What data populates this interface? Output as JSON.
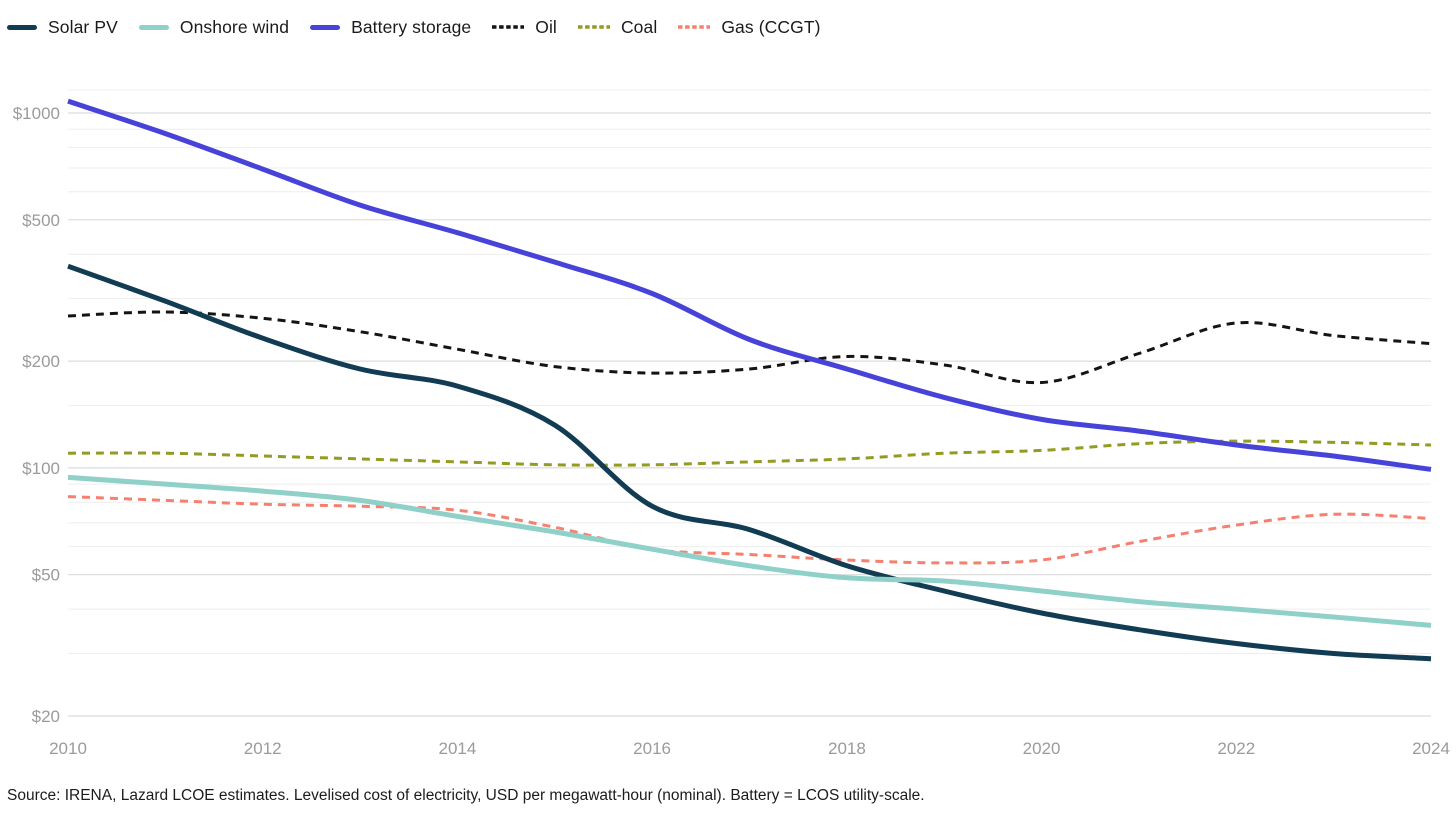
{
  "source_note": "Source: IRENA, Lazard LCOE estimates. Levelised cost of electricity, USD per megawatt-hour (nominal). Battery = LCOS utility-scale.",
  "chart_data": {
    "type": "line",
    "title": "",
    "xlabel": "",
    "ylabel": "USD per megawatt-hour (nominal)",
    "y_scale": "log",
    "ylim": [
      20,
      1100
    ],
    "grid": true,
    "legend_position": "top-left",
    "x": [
      2010,
      2011,
      2012,
      2013,
      2014,
      2015,
      2016,
      2017,
      2018,
      2019,
      2020,
      2021,
      2022,
      2023,
      2024
    ],
    "x_tick_labels": [
      "2010",
      "2012",
      "2014",
      "2016",
      "2018",
      "2020",
      "2022",
      "2024"
    ],
    "y_ticks": [
      {
        "value": 1000,
        "label": "$1000"
      },
      {
        "value": 500,
        "label": "$500"
      },
      {
        "value": 200,
        "label": "$200"
      },
      {
        "value": 100,
        "label": "$100"
      },
      {
        "value": 50,
        "label": "$50"
      },
      {
        "value": 20,
        "label": "$20"
      }
    ],
    "y_minor_gridlines": [
      900,
      800,
      700,
      600,
      400,
      300,
      150,
      90,
      80,
      70,
      60,
      40,
      30
    ],
    "series": [
      {
        "name": "Solar PV",
        "color": "#113C54",
        "dash": "solid",
        "width": 5,
        "values": [
          370,
          295,
          232,
          190,
          170,
          132,
          78,
          67,
          53,
          45,
          39,
          35,
          32,
          30,
          29
        ]
      },
      {
        "name": "Onshore wind",
        "color": "#8FD0C9",
        "dash": "solid",
        "width": 5,
        "values": [
          94,
          90,
          86,
          81,
          73,
          66,
          59,
          53,
          49,
          48,
          45,
          42,
          40,
          38,
          36
        ]
      },
      {
        "name": "Battery storage",
        "color": "#4843D8",
        "dash": "solid",
        "width": 5,
        "values": [
          1080,
          875,
          695,
          550,
          460,
          380,
          310,
          230,
          190,
          158,
          137,
          127,
          116,
          108,
          99
        ]
      },
      {
        "name": "Oil",
        "color": "#141414",
        "dash": "dashed",
        "width": 3,
        "values": [
          268,
          275,
          264,
          242,
          216,
          193,
          185,
          190,
          206,
          195,
          174,
          210,
          256,
          236,
          224
        ]
      },
      {
        "name": "Coal",
        "color": "#939B23",
        "dash": "dashed",
        "width": 3,
        "values": [
          110,
          110,
          108,
          106,
          104,
          102,
          102,
          104,
          106,
          110,
          112,
          117,
          119,
          118,
          116
        ]
      },
      {
        "name": "Gas (CCGT)",
        "color": "#F5806F",
        "dash": "dashed",
        "width": 3,
        "values": [
          83,
          81,
          79,
          78,
          76,
          68,
          59,
          57,
          55,
          54,
          55,
          62,
          69,
          74,
          72
        ]
      }
    ]
  }
}
